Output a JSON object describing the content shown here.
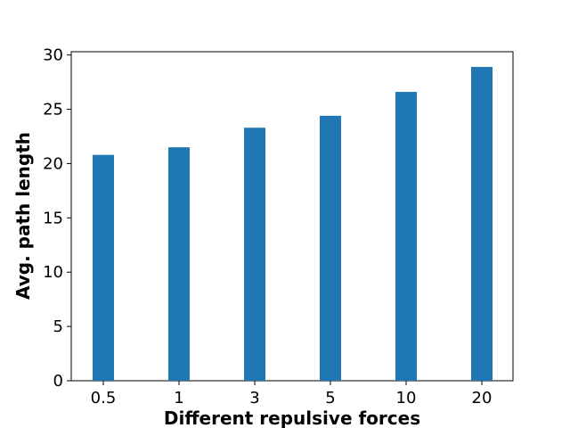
{
  "chart_data": {
    "type": "bar",
    "title": "",
    "xlabel": "Different repulsive forces",
    "ylabel": "Avg. path length",
    "categories": [
      "0.5",
      "1",
      "3",
      "5",
      "10",
      "20"
    ],
    "series": [
      {
        "values": [
          20.8,
          21.5,
          23.3,
          24.4,
          26.6,
          28.9
        ]
      }
    ],
    "ylim": [
      0,
      30.3
    ],
    "yticks": [
      0,
      5,
      10,
      15,
      20,
      25,
      30
    ],
    "bar_color": "#1f77b4",
    "grid": false,
    "legend": "none"
  }
}
